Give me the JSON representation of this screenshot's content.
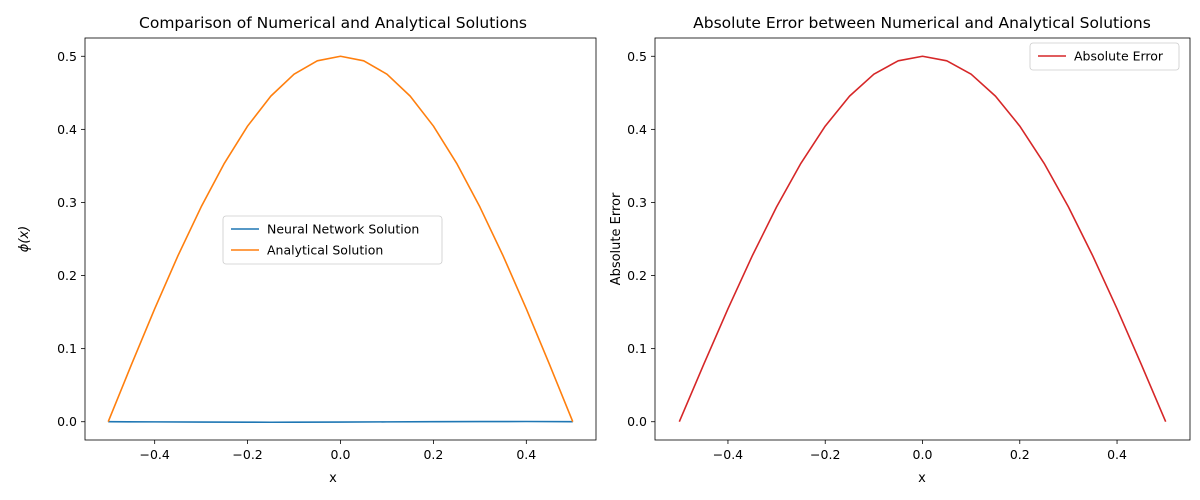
{
  "chart_data": [
    {
      "type": "line",
      "title": "Comparison of Numerical and Analytical Solutions",
      "xlabel": "x",
      "ylabel": "ϕ(x)",
      "xlim": [
        -0.55,
        0.55
      ],
      "ylim": [
        -0.025,
        0.525
      ],
      "xticks": [
        -0.4,
        -0.2,
        0.0,
        0.2,
        0.4
      ],
      "xtick_labels": [
        "−0.4",
        "−0.2",
        "0.0",
        "0.2",
        "0.4"
      ],
      "yticks": [
        0.0,
        0.1,
        0.2,
        0.3,
        0.4,
        0.5
      ],
      "ytick_labels": [
        "0.0",
        "0.1",
        "0.2",
        "0.3",
        "0.4",
        "0.5"
      ],
      "grid": false,
      "legend_position": "center",
      "series": [
        {
          "name": "Neural Network Solution",
          "color": "#1f77b4",
          "x": [
            -0.5,
            -0.4,
            -0.3,
            -0.2,
            -0.15,
            -0.1,
            0.0,
            0.1,
            0.2,
            0.3,
            0.4,
            0.5
          ],
          "y": [
            0.0,
            -0.0002,
            -0.0004,
            -0.0006,
            -0.0007,
            -0.0006,
            -0.0004,
            -0.0002,
            0.0,
            0.0002,
            0.0003,
            0.0
          ]
        },
        {
          "name": "Analytical Solution",
          "color": "#ff7f0e",
          "x": [
            -0.5,
            -0.45,
            -0.4,
            -0.35,
            -0.3,
            -0.25,
            -0.2,
            -0.15,
            -0.1,
            -0.05,
            0.0,
            0.05,
            0.1,
            0.15,
            0.2,
            0.25,
            0.3,
            0.35,
            0.4,
            0.45,
            0.5
          ],
          "y": [
            0.0,
            0.0782,
            0.1545,
            0.227,
            0.2939,
            0.3536,
            0.4045,
            0.4455,
            0.4755,
            0.4938,
            0.5,
            0.4938,
            0.4755,
            0.4455,
            0.4045,
            0.3536,
            0.2939,
            0.227,
            0.1545,
            0.0782,
            0.0
          ]
        }
      ]
    },
    {
      "type": "line",
      "title": "Absolute Error between Numerical and Analytical Solutions",
      "xlabel": "x",
      "ylabel": "Absolute Error",
      "xlim": [
        -0.55,
        0.55
      ],
      "ylim": [
        -0.025,
        0.525
      ],
      "xticks": [
        -0.4,
        -0.2,
        0.0,
        0.2,
        0.4
      ],
      "xtick_labels": [
        "−0.4",
        "−0.2",
        "0.0",
        "0.2",
        "0.4"
      ],
      "yticks": [
        0.0,
        0.1,
        0.2,
        0.3,
        0.4,
        0.5
      ],
      "ytick_labels": [
        "0.0",
        "0.1",
        "0.2",
        "0.3",
        "0.4",
        "0.5"
      ],
      "grid": false,
      "legend_position": "top-right",
      "series": [
        {
          "name": "Absolute Error",
          "color": "#d62728",
          "x": [
            -0.5,
            -0.45,
            -0.4,
            -0.35,
            -0.3,
            -0.25,
            -0.2,
            -0.15,
            -0.1,
            -0.05,
            0.0,
            0.05,
            0.1,
            0.15,
            0.2,
            0.25,
            0.3,
            0.35,
            0.4,
            0.45,
            0.5
          ],
          "y": [
            0.0,
            0.0782,
            0.1545,
            0.227,
            0.2939,
            0.3536,
            0.4045,
            0.4455,
            0.4755,
            0.4938,
            0.5,
            0.4938,
            0.4755,
            0.4455,
            0.4045,
            0.3536,
            0.2939,
            0.227,
            0.1545,
            0.0782,
            0.0
          ]
        }
      ]
    }
  ]
}
